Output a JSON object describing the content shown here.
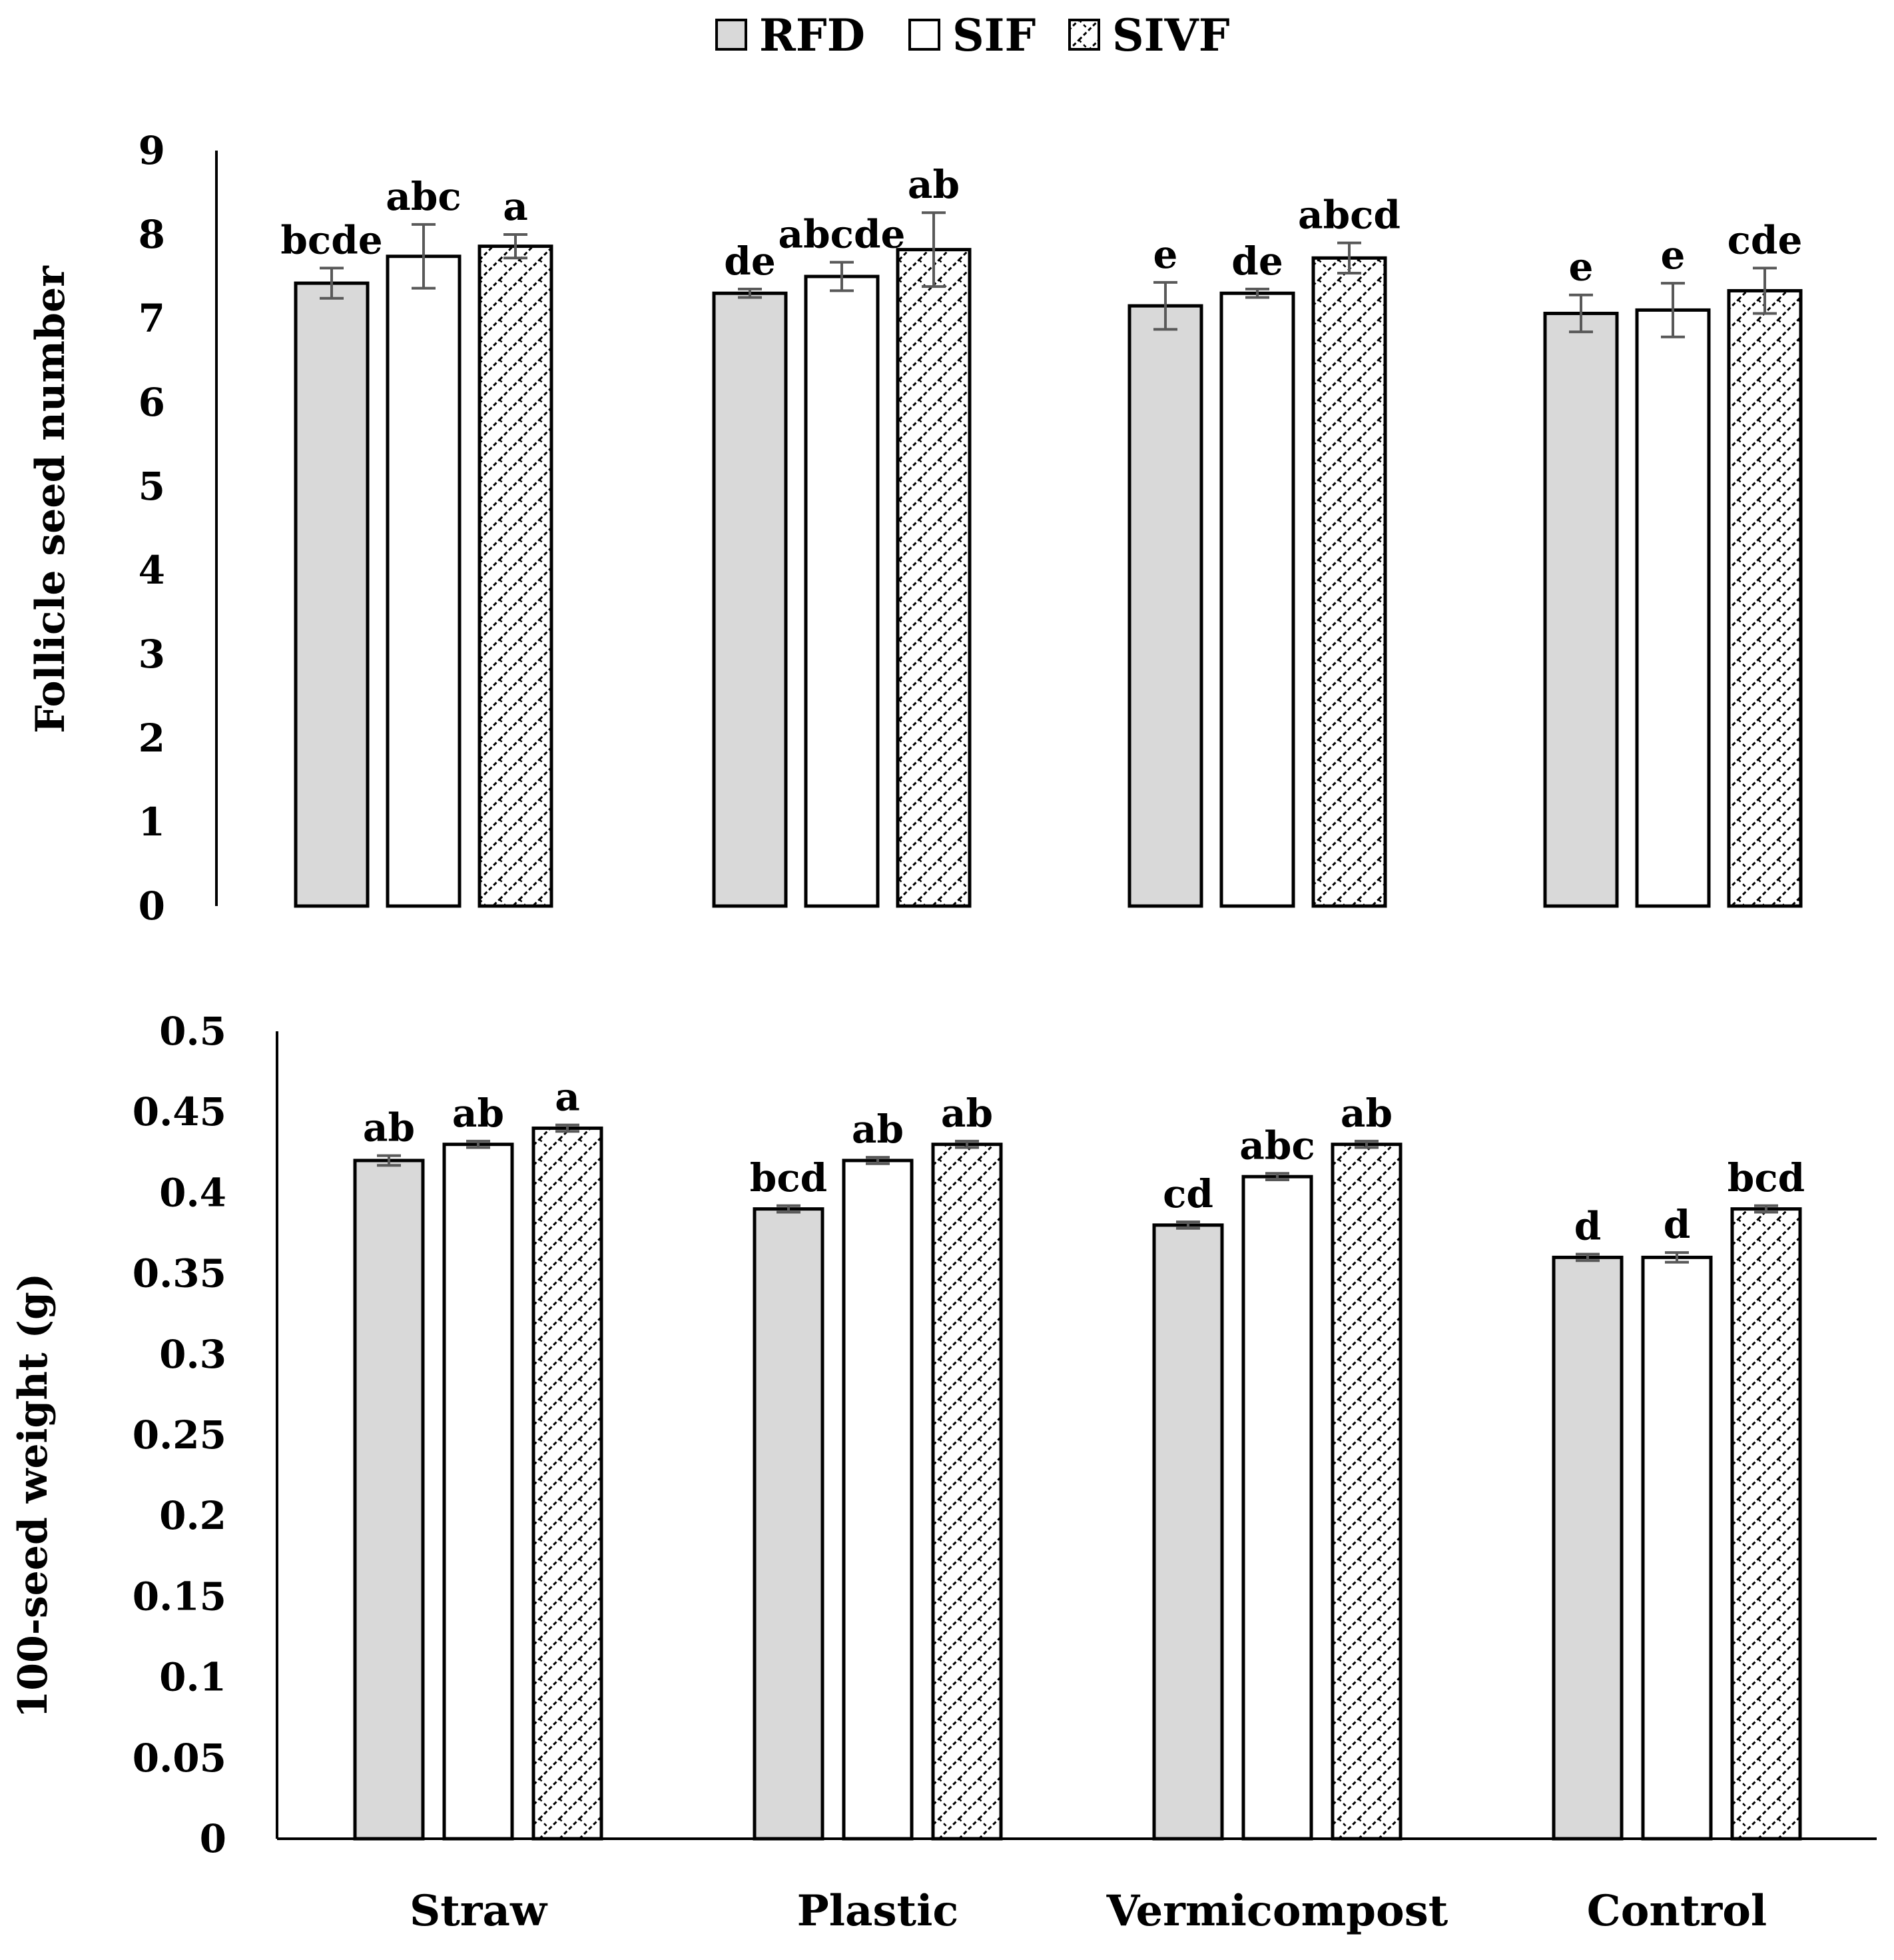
{
  "legend": [
    {
      "name": "RFD",
      "fill": "#d9d9d9",
      "pattern": "solid"
    },
    {
      "name": "SIF",
      "fill": "#ffffff",
      "pattern": "solid"
    },
    {
      "name": "SIVF",
      "fill": "#ffffff",
      "pattern": "hatch"
    }
  ],
  "colors": {
    "axis": "#000000",
    "error_bar": "#595959",
    "bar_stroke": "#000000"
  },
  "chart_data": [
    {
      "type": "bar",
      "title": "",
      "xlabel": "",
      "ylabel": "Follicle seed number",
      "ylim": [
        0,
        9
      ],
      "yticks": [
        "0",
        "1",
        "2",
        "3",
        "4",
        "5",
        "6",
        "7",
        "8",
        "9"
      ],
      "categories": [
        "Straw",
        "Plastic",
        "Vermicompost",
        "Control"
      ],
      "show_category_labels": false,
      "series": [
        {
          "name": "RFD",
          "values": [
            7.42,
            7.3,
            7.15,
            7.06
          ],
          "errors": [
            0.18,
            0.05,
            0.28,
            0.22
          ],
          "letters": [
            "bcde",
            "de",
            "e",
            "e"
          ]
        },
        {
          "name": "SIF",
          "values": [
            7.74,
            7.5,
            7.3,
            7.1
          ],
          "errors": [
            0.38,
            0.17,
            0.05,
            0.32
          ],
          "letters": [
            "abc",
            "abcde",
            "de",
            "e"
          ]
        },
        {
          "name": "SIVF",
          "values": [
            7.86,
            7.82,
            7.72,
            7.33
          ],
          "errors": [
            0.14,
            0.44,
            0.18,
            0.27
          ],
          "letters": [
            "a",
            "ab",
            "abcd",
            "cde"
          ]
        }
      ]
    },
    {
      "type": "bar",
      "title": "",
      "xlabel": "",
      "ylabel": "100-seed weight (g)",
      "ylim": [
        0,
        0.5
      ],
      "yticks": [
        "0",
        "0.05",
        "0.1",
        "0.15",
        "0.2",
        "0.25",
        "0.3",
        "0.35",
        "0.4",
        "0.45",
        "0.5"
      ],
      "categories": [
        "Straw",
        "Plastic",
        "Vermicompost",
        "Control"
      ],
      "show_category_labels": true,
      "series": [
        {
          "name": "RFD",
          "values": [
            0.42,
            0.39,
            0.38,
            0.36
          ],
          "errors": [
            0.003,
            0.002,
            0.002,
            0.002
          ],
          "letters": [
            "ab",
            "bcd",
            "cd",
            "d"
          ]
        },
        {
          "name": "SIF",
          "values": [
            0.43,
            0.42,
            0.41,
            0.36
          ],
          "errors": [
            0.002,
            0.002,
            0.002,
            0.003
          ],
          "letters": [
            "ab",
            "ab",
            "abc",
            "d"
          ]
        },
        {
          "name": "SIVF",
          "values": [
            0.44,
            0.43,
            0.43,
            0.39
          ],
          "errors": [
            0.002,
            0.002,
            0.002,
            0.002
          ],
          "letters": [
            "a",
            "ab",
            "ab",
            "bcd"
          ]
        }
      ]
    }
  ]
}
